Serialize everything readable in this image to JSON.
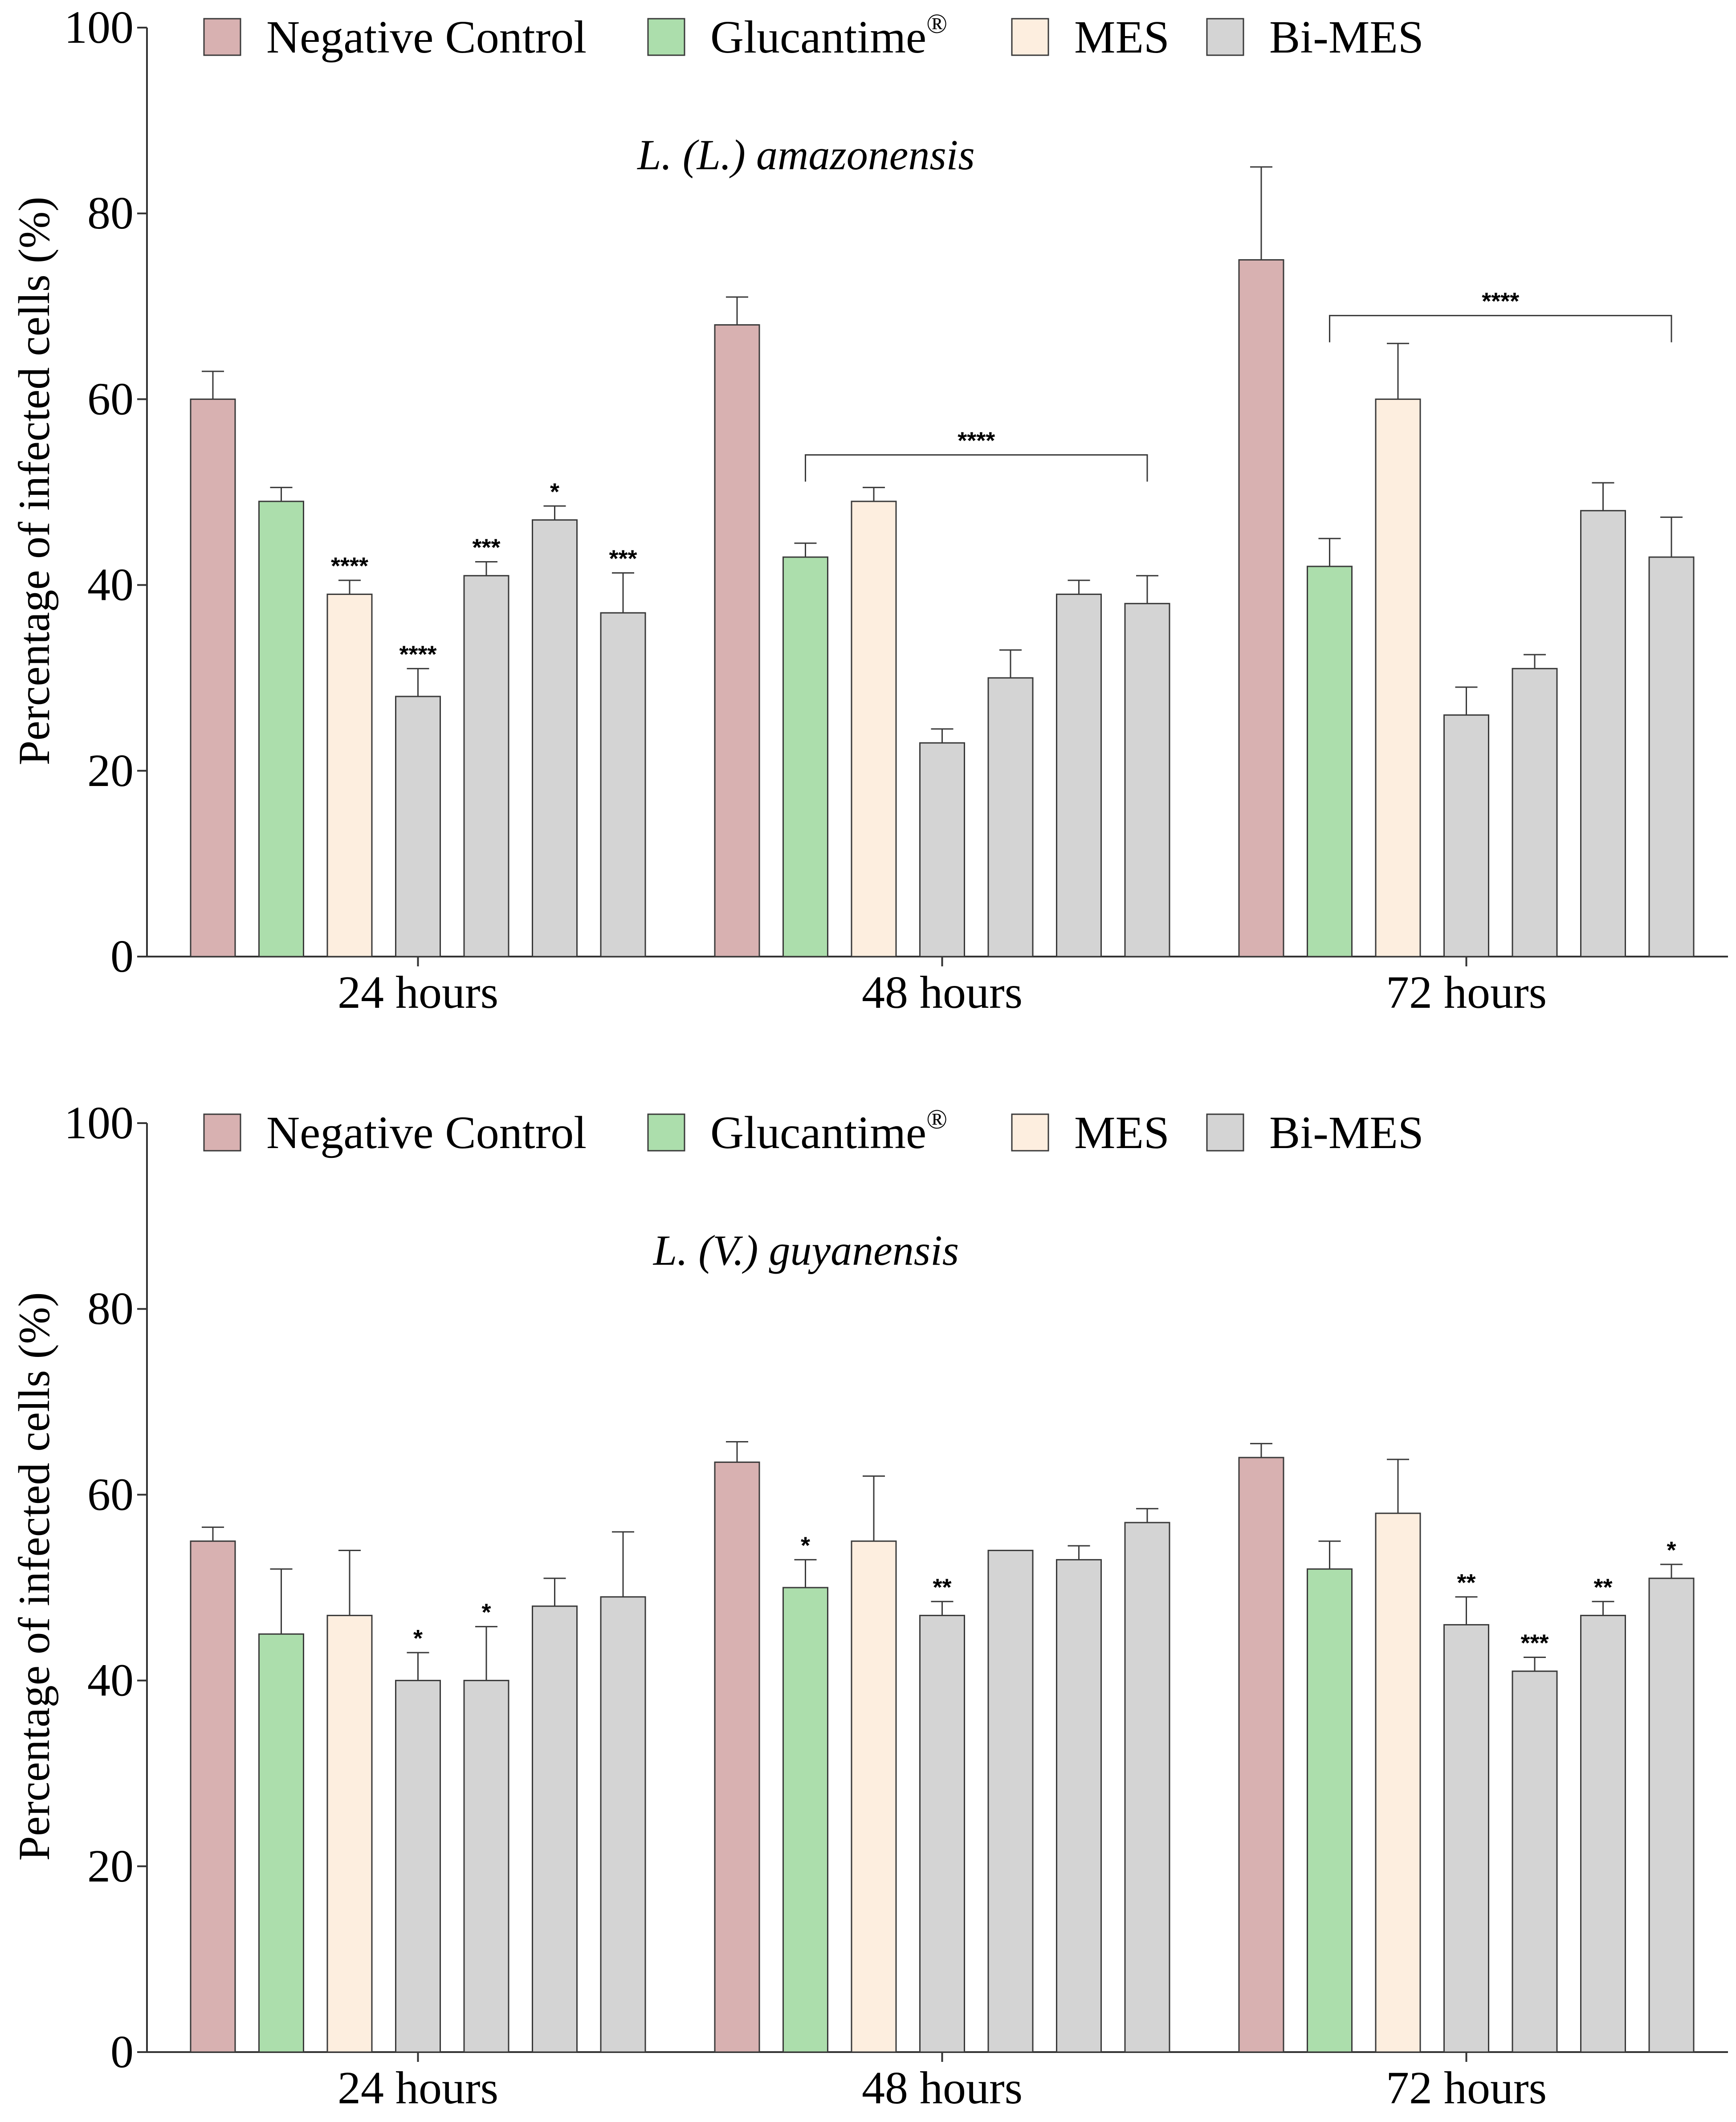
{
  "series_styles": [
    {
      "name": "Negative Control",
      "color": "#D8B1B1"
    },
    {
      "name": "Glucantime",
      "sup": "®",
      "color": "#ACDEAC"
    },
    {
      "name": "MES",
      "color": "#FDEEDF"
    },
    {
      "name": "Bi-MES",
      "color": "#D4D4D4"
    }
  ],
  "bar_series_index": [
    0,
    1,
    2,
    3,
    3,
    3,
    3
  ],
  "chart_data": [
    {
      "type": "bar",
      "title": "L. (L.) amazonensis",
      "xlabel": "",
      "ylabel": "Percentage of infected cells (%)",
      "ylim": [
        0,
        100
      ],
      "yticks": [
        "0",
        "20",
        "40",
        "60",
        "80",
        "100"
      ],
      "legend_position": "top",
      "categories": [
        "24 hours",
        "48 hours",
        "72 hours"
      ],
      "groups": [
        {
          "values": [
            60,
            49,
            39,
            28,
            41,
            47,
            37
          ],
          "errors": [
            3,
            1.5,
            1.5,
            3,
            1.5,
            1.5,
            4.3
          ],
          "sig": [
            "",
            "",
            "****",
            "****",
            "***",
            "*",
            "***"
          ]
        },
        {
          "values": [
            68,
            43,
            49,
            23,
            30,
            39,
            38
          ],
          "errors": [
            3,
            1.5,
            1.5,
            1.5,
            3,
            1.5,
            3
          ],
          "sig": [
            "",
            "",
            "",
            "",
            "",
            "",
            ""
          ]
        },
        {
          "values": [
            75,
            42,
            60,
            26,
            31,
            48,
            43
          ],
          "errors": [
            10,
            3,
            6,
            3,
            1.5,
            3,
            4.3
          ],
          "sig": [
            "",
            "",
            "",
            "",
            "",
            "",
            ""
          ]
        }
      ],
      "brackets": [
        {
          "group": 1,
          "from_bar": 1,
          "to_bar": 6,
          "level": 54,
          "label": "****"
        },
        {
          "group": 2,
          "from_bar": 1,
          "to_bar": 6,
          "level": 69,
          "label": "****"
        }
      ]
    },
    {
      "type": "bar",
      "title": "L. (V.) guyanensis",
      "xlabel": "",
      "ylabel": "Percentage of infected cells (%)",
      "ylim": [
        0,
        100
      ],
      "yticks": [
        "0",
        "20",
        "40",
        "60",
        "80",
        "100"
      ],
      "legend_position": "top",
      "categories": [
        "24 hours",
        "48 hours",
        "72 hours"
      ],
      "groups": [
        {
          "values": [
            55,
            45,
            47,
            40,
            40,
            48,
            49
          ],
          "errors": [
            1.5,
            7,
            7,
            3,
            5.8,
            3,
            7
          ],
          "sig": [
            "",
            "",
            "",
            "*",
            "*",
            "",
            ""
          ]
        },
        {
          "values": [
            63.5,
            50,
            55,
            47,
            54,
            53,
            57
          ],
          "errors": [
            2.2,
            3,
            7,
            1.5,
            0,
            1.5,
            1.5
          ],
          "sig": [
            "",
            "*",
            "",
            "**",
            "",
            "",
            ""
          ]
        },
        {
          "values": [
            64,
            52,
            58,
            46,
            41,
            47,
            51
          ],
          "errors": [
            1.5,
            3,
            5.8,
            3,
            1.5,
            1.5,
            1.5
          ],
          "sig": [
            "",
            "",
            "",
            "**",
            "***",
            "**",
            "*"
          ]
        }
      ],
      "brackets": []
    }
  ]
}
